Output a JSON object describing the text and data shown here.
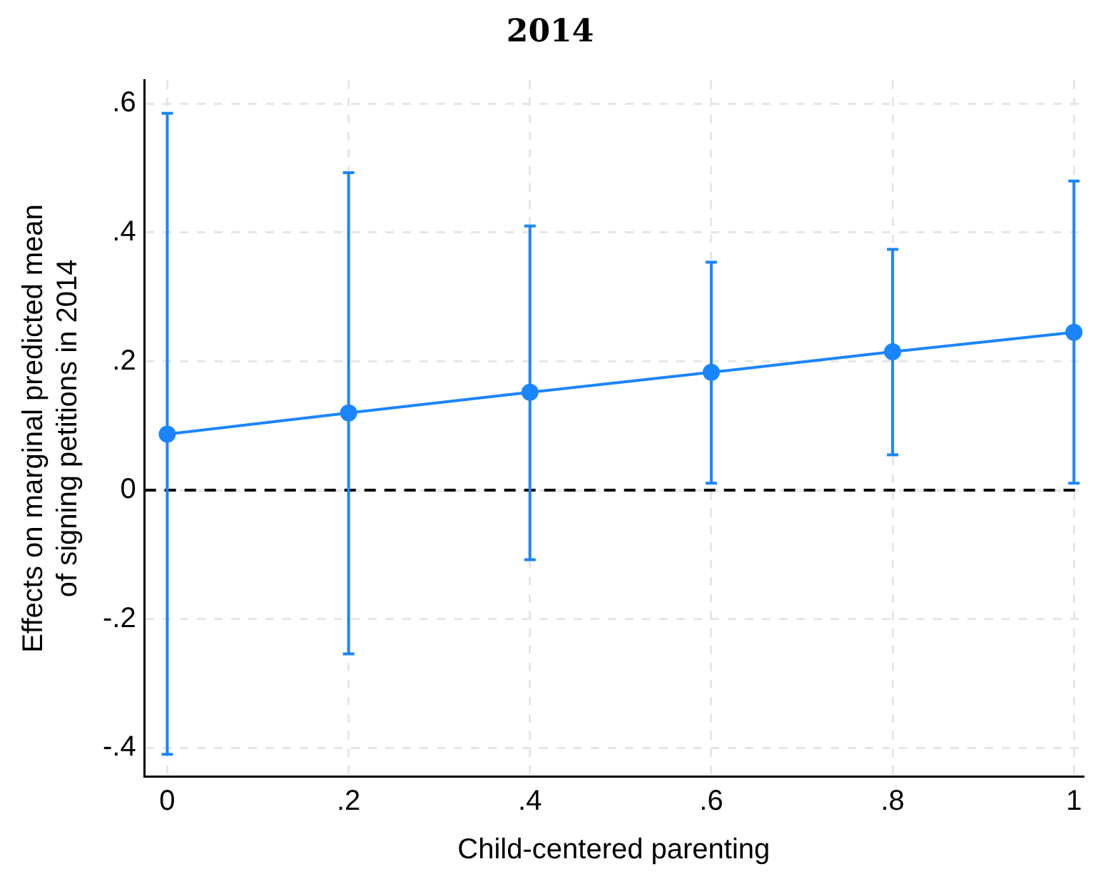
{
  "chart_data": {
    "type": "line",
    "title": "2014",
    "xlabel": "Child-centered parenting",
    "ylabel": "Effects on marginal predicted mean\nof signing petitions in 2014",
    "x": [
      0,
      0.2,
      0.4,
      0.6,
      0.8,
      1
    ],
    "series": [
      {
        "color": "#1a85ff",
        "values": [
          0.087,
          0.12,
          0.152,
          0.183,
          0.215,
          0.245
        ],
        "errors": [
          [
            -0.41,
            0.585
          ],
          [
            -0.254,
            0.493
          ],
          [
            -0.108,
            0.41
          ],
          [
            0.011,
            0.354
          ],
          [
            0.055,
            0.374
          ],
          [
            0.011,
            0.48
          ]
        ]
      }
    ],
    "xlim": [
      -0.025,
      1.01
    ],
    "ylim": [
      -0.444,
      0.636
    ],
    "xticks": [
      0,
      {
        "value": 0.2,
        "label": ".2"
      },
      {
        "value": 0.4,
        "label": ".4"
      },
      {
        "value": 0.6,
        "label": ".6"
      },
      {
        "value": 0.8,
        "label": ".8"
      },
      1
    ],
    "yticks": [
      {
        "value": -0.4,
        "label": "-.4"
      },
      {
        "value": -0.2,
        "label": "-.2"
      },
      0,
      {
        "value": 0.2,
        "label": ".2"
      },
      {
        "value": 0.4,
        "label": ".4"
      },
      {
        "value": 0.6,
        "label": ".6"
      }
    ],
    "ref_lines": [
      {
        "axis": "y",
        "value": 0,
        "color": "#000000",
        "line_style": "dashed"
      }
    ],
    "grid": true,
    "legend": false,
    "marker": "circle",
    "line_style": "solid"
  }
}
